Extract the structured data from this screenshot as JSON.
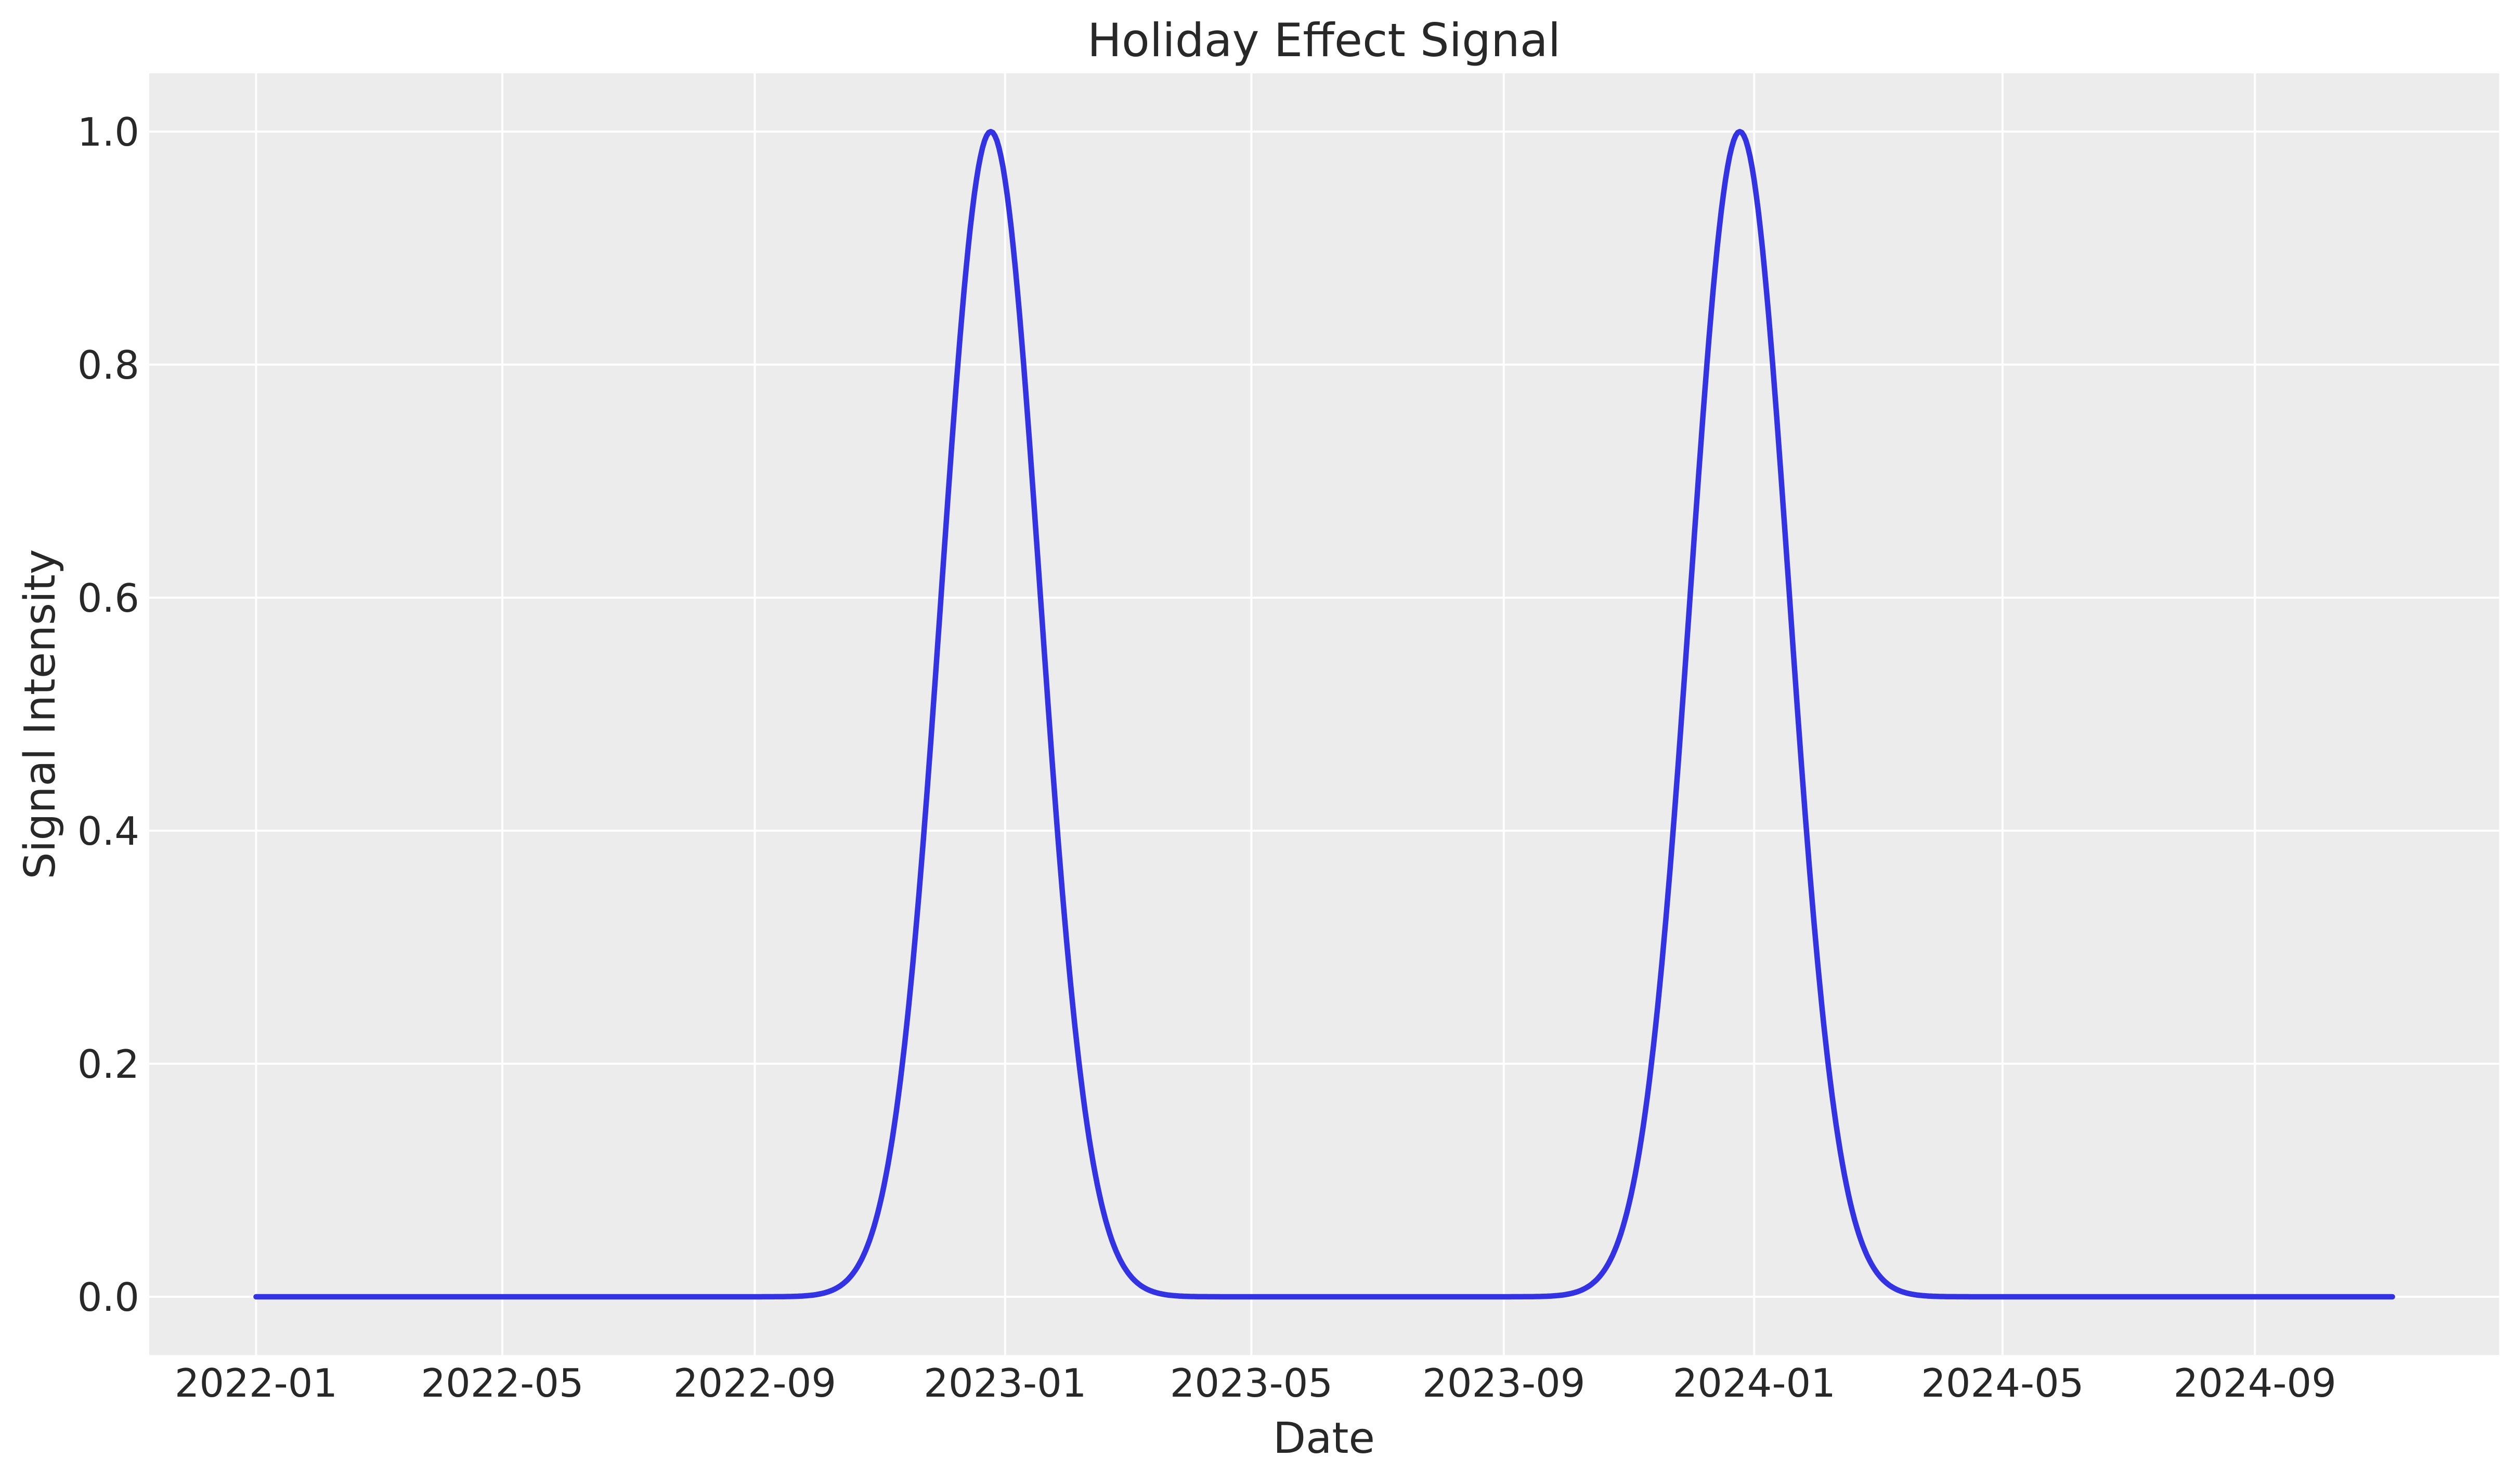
{
  "chart_data": {
    "type": "line",
    "title": "Holiday Effect Signal",
    "xlabel": "Date",
    "ylabel": "Signal Intensity",
    "x_ticks": [
      "2022-01",
      "2022-05",
      "2022-09",
      "2023-01",
      "2023-05",
      "2023-09",
      "2024-01",
      "2024-05",
      "2024-09"
    ],
    "y_ticks": [
      {
        "value": 0.0,
        "label": "0.0"
      },
      {
        "value": 0.2,
        "label": "0.2"
      },
      {
        "value": 0.4,
        "label": "0.4"
      },
      {
        "value": 0.6,
        "label": "0.6"
      },
      {
        "value": 0.8,
        "label": "0.8"
      },
      {
        "value": 1.0,
        "label": "1.0"
      }
    ],
    "ylim": [
      -0.05,
      1.05
    ],
    "x_start": "2022-01-01",
    "x_end": "2024-11-07",
    "x_margin_frac": 0.05,
    "grid": true,
    "legend_position": "none",
    "series": [
      {
        "name": "holiday_effect_signal",
        "model": "gaussian_peaks",
        "baseline": 0.0,
        "amplitude_max": 1.0,
        "peaks": [
          {
            "center": "2022-12-25",
            "amplitude": 1.0,
            "sigma_days": 24
          },
          {
            "center": "2023-12-25",
            "amplitude": 1.0,
            "sigma_days": 24
          }
        ],
        "sample_step_days": 1,
        "color": "#3333e3"
      }
    ],
    "style": {
      "figure_background": "#ffffff",
      "axes_background": "#ececec",
      "grid_color": "#ffffff",
      "text_color": "#282828",
      "line_width": 10.5,
      "grid_line_width": 4
    }
  }
}
